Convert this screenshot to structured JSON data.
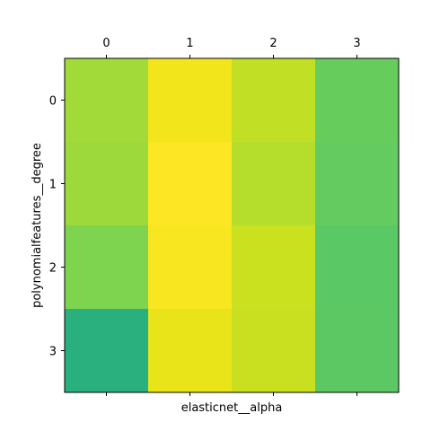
{
  "chart_data": {
    "type": "heatmap",
    "xlabel": "elasticnet__alpha",
    "ylabel": "polynomialfeatures__degree",
    "x_categories": [
      "0",
      "1",
      "2",
      "3"
    ],
    "y_categories": [
      "0",
      "1",
      "2",
      "3"
    ],
    "x_tick_position": "top",
    "grid": false,
    "cells": [
      [
        "#a2da3a",
        "#f2e51c",
        "#c1df24",
        "#66cc5c"
      ],
      [
        "#9dd93b",
        "#fde725",
        "#b5dd2b",
        "#63cb5f"
      ],
      [
        "#7ed34f",
        "#f8e620",
        "#cae11f",
        "#5ac864"
      ],
      [
        "#2ab07f",
        "#e8e419",
        "#c9e020",
        "#5cc863"
      ]
    ]
  }
}
